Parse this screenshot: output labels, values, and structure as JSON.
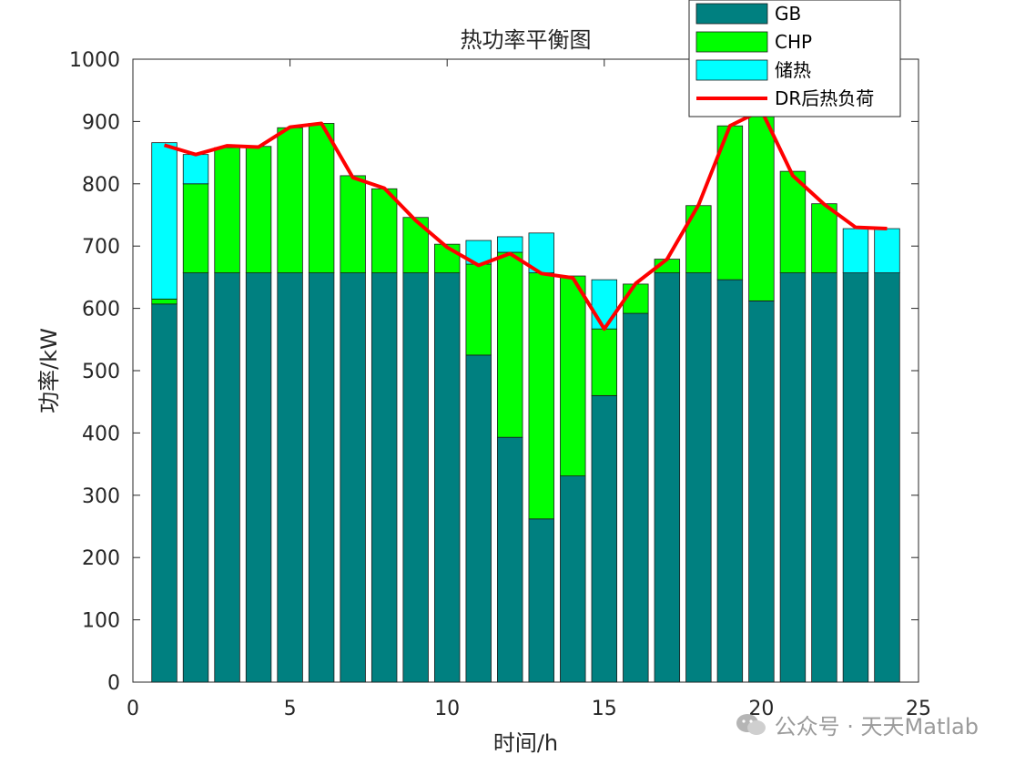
{
  "chart_data": {
    "type": "bar",
    "stacked": true,
    "title": "热功率平衡图",
    "xlabel": "时间/h",
    "ylabel": "功率/kW",
    "xlim": [
      0,
      25
    ],
    "ylim": [
      0,
      1000
    ],
    "xticks": [
      "0",
      "5",
      "10",
      "15",
      "20",
      "25"
    ],
    "yticks": [
      "0",
      "100",
      "200",
      "300",
      "400",
      "500",
      "600",
      "700",
      "800",
      "900",
      "1000"
    ],
    "x": [
      1,
      2,
      3,
      4,
      5,
      6,
      7,
      8,
      9,
      10,
      11,
      12,
      13,
      14,
      15,
      16,
      17,
      18,
      19,
      20,
      21,
      22,
      23,
      24
    ],
    "series": [
      {
        "name": "GB",
        "color": "#008080",
        "values": [
          607,
          657,
          657,
          657,
          657,
          657,
          657,
          657,
          657,
          657,
          525,
          393,
          262,
          331,
          460,
          592,
          657,
          657,
          646,
          612,
          657,
          657,
          657,
          657
        ]
      },
      {
        "name": "CHP",
        "color": "#00ff00",
        "values": [
          8,
          143,
          201,
          203,
          233,
          240,
          156,
          135,
          89,
          46,
          146,
          297,
          395,
          321,
          107,
          47,
          22,
          108,
          247,
          296,
          163,
          111,
          0,
          0
        ]
      },
      {
        "name": "储热",
        "color": "#00ffff",
        "values": [
          251,
          47,
          0,
          0,
          0,
          0,
          0,
          0,
          0,
          0,
          38,
          25,
          64,
          0,
          79,
          0,
          0,
          0,
          0,
          0,
          0,
          0,
          71,
          71
        ]
      },
      {
        "name": "DR后热负荷",
        "color": "#ff0000",
        "type": "line",
        "values": [
          862,
          847,
          861,
          859,
          891,
          897,
          810,
          793,
          741,
          698,
          669,
          688,
          656,
          649,
          567,
          640,
          679,
          766,
          893,
          918,
          813,
          767,
          730,
          728
        ]
      }
    ],
    "legend_position": "top-right"
  },
  "watermark": "公众号 · 天天Matlab"
}
